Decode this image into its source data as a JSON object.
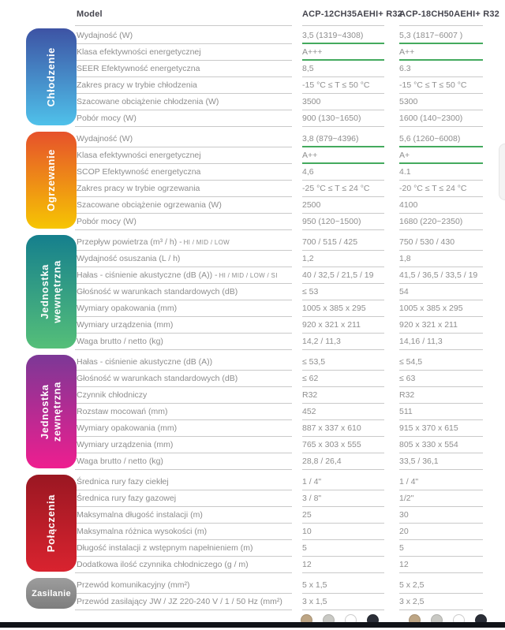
{
  "header": {
    "model_label": "Model",
    "col1": "ACP-12CH35AEHI+ R32",
    "col2": "ACP-18CH50AEHI+ R32"
  },
  "sections": [
    {
      "id": "chlodzenie",
      "label": "Chłodzenie",
      "label_lines": [
        "Chłodzenie"
      ],
      "horizontal": false,
      "gradient": [
        "#3d53a4",
        "#4fc1ea"
      ],
      "rows": [
        {
          "label": "Wydajność (W)",
          "v1": "3,5 (1319~4308)",
          "v2": "5,3 (1817~6007 )",
          "highlight": true
        },
        {
          "label": "Klasa efektywności energetycznej",
          "v1": "A+++",
          "v2": "A++",
          "highlight": true
        },
        {
          "label": "SEER Efektywność energetyczna",
          "v1": "8,5",
          "v2": "6.3"
        },
        {
          "label": "Zakres pracy w trybie chłodzenia",
          "v1": "-15 °C ≤ T ≤ 50 °C",
          "v2": "-15 °C ≤ T ≤ 50 °C"
        },
        {
          "label": "Szacowane obciążenie chłodzenia (W)",
          "v1": "3500",
          "v2": "5300"
        },
        {
          "label": "Pobór mocy (W)",
          "v1": "900 (130~1650)",
          "v2": "1600 (140~2300)"
        }
      ]
    },
    {
      "id": "ogrzewanie",
      "label": "Ogrzewanie",
      "label_lines": [
        "Ogrzewanie"
      ],
      "horizontal": false,
      "gradient": [
        "#e6512b",
        "#f6c503"
      ],
      "rows": [
        {
          "label": "Wydajność (W)",
          "v1": "3,8 (879~4396)",
          "v2": "5,6 (1260~6008)",
          "highlight": true
        },
        {
          "label": "Klasa efektywności energetycznej",
          "v1": "A++",
          "v2": "A+",
          "highlight": true
        },
        {
          "label": "SCOP Efektywność energetyczna",
          "v1": "4,6",
          "v2": "4.1"
        },
        {
          "label": "Zakres pracy w trybie ogrzewania",
          "v1": "-25 °C ≤ T ≤ 24 °C",
          "v2": "-20 °C ≤ T ≤ 24 °C"
        },
        {
          "label": "Szacowane obciążenie ogrzewania (W)",
          "v1": "2500",
          "v2": "4100"
        },
        {
          "label": "Pobór mocy (W)",
          "v1": "950 (120~1500)",
          "v2": "1680 (220~2350)"
        }
      ]
    },
    {
      "id": "jednostka-wewnetrzna",
      "label": "Jednostka wewnętrzna",
      "label_lines": [
        "Jednostka",
        "wewnętrzna"
      ],
      "horizontal": false,
      "gradient": [
        "#157f8d",
        "#55bf79"
      ],
      "rows": [
        {
          "label": "Przepływ powietrza (m³ / h) - ",
          "label_small": "HI / MID / LOW",
          "v1": "700 / 515 / 425",
          "v2": "750 / 530 / 430"
        },
        {
          "label": "Wydajność osuszania (L / h)",
          "v1": "1,2",
          "v2": "1,8"
        },
        {
          "label": "Hałas - ciśnienie akustyczne (dB (A)) - ",
          "label_small": "HI / MID / LOW / SI",
          "v1": "40 / 32,5 / 21,5 / 19",
          "v2": "41,5 / 36,5 / 33,5 / 19"
        },
        {
          "label": "Głośność w warunkach standardowych (dB)",
          "v1": "≤ 53",
          "v2": "54"
        },
        {
          "label": "Wymiary opakowania (mm)",
          "v1": "1005 x 385 x 295",
          "v2": "1005 x 385 x 295"
        },
        {
          "label": "Wymiary urządzenia (mm)",
          "v1": "920 x 321 x 211",
          "v2": "920 x 321 x 211"
        },
        {
          "label": "Waga brutto / netto (kg)",
          "v1": "14,2 / 11,3",
          "v2": "14,16 / 11,3"
        }
      ]
    },
    {
      "id": "jednostka-zewnetrzna",
      "label": "Jednostka zewnętrzna",
      "label_lines": [
        "Jednostka",
        "zewnętrzna"
      ],
      "horizontal": false,
      "gradient": [
        "#7c3896",
        "#ee1e8f"
      ],
      "rows": [
        {
          "label": "Hałas - ciśnienie akustyczne (dB (A))",
          "v1": "≤ 53,5",
          "v2": "≤ 54,5"
        },
        {
          "label": "Głośność w warunkach standardowych (dB)",
          "v1": "≤ 62",
          "v2": "≤ 63"
        },
        {
          "label": "Czynnik chłodniczy",
          "v1": "R32",
          "v2": "R32"
        },
        {
          "label": "Rozstaw mocowań (mm)",
          "v1": "452",
          "v2": "511"
        },
        {
          "label": "Wymiary opakowania (mm)",
          "v1": "887 x 337 x 610",
          "v2": "915 x 370 x 615"
        },
        {
          "label": "Wymiary urządzenia (mm)",
          "v1": "765 x 303 x 555",
          "v2": "805 x 330 x 554"
        },
        {
          "label": "Waga brutto / netto (kg)",
          "v1": "28,8 / 26,4",
          "v2": "33,5 / 36,1"
        }
      ]
    },
    {
      "id": "polaczenia",
      "label": "Połączenia",
      "label_lines": [
        "Połączenia"
      ],
      "horizontal": false,
      "gradient": [
        "#9a1722",
        "#d9232f"
      ],
      "rows": [
        {
          "label": "Średnica rury fazy ciekłej",
          "v1": "1 / 4\"",
          "v2": "1 / 4\""
        },
        {
          "label": "Średnica rury fazy gazowej",
          "v1": "3 / 8\"",
          "v2": "1/2\""
        },
        {
          "label": "Maksymalna długość instalacji (m)",
          "v1": "25",
          "v2": "30"
        },
        {
          "label": "Maksymalna różnica wysokości (m)",
          "v1": "10",
          "v2": "20"
        },
        {
          "label": "Długość instalacji z wstępnym napełnieniem (m)",
          "v1": "5",
          "v2": "5"
        },
        {
          "label": "Dodatkowa ilość czynnika chłodniczego (g / m)",
          "v1": "12",
          "v2": "12"
        }
      ]
    },
    {
      "id": "zasilanie",
      "label": "Zasilanie",
      "label_lines": [
        "Zasilanie"
      ],
      "horizontal": true,
      "gradient": [
        "#9d9d9d",
        "#7d7d7d"
      ],
      "rows": [
        {
          "label": "Przewód komunikacyjny (mm²)",
          "v1": "5 x 1,5",
          "v2": "5 x 2,5"
        },
        {
          "label": "Przewód zasilający JW / JZ 220-240 V / 1 / 50 Hz (mm²)",
          "v1": "3 x 1,5",
          "v2": "3 x 2,5"
        }
      ]
    }
  ],
  "swatches": {
    "colors": [
      {
        "name": "beige",
        "hex": "#bda584"
      },
      {
        "name": "light-gray",
        "hex": "#c9c9c4"
      },
      {
        "name": "white",
        "hex": "#ffffff",
        "border": "#cccccc"
      },
      {
        "name": "dark-navy",
        "hex": "#2b2e37"
      }
    ]
  },
  "colors": {
    "row_text": "#8e8e8e",
    "header_text": "#45454e",
    "divider": "#c9c9c9",
    "highlight_underline": "#44aa5e",
    "bottom_bar": "#111318"
  }
}
